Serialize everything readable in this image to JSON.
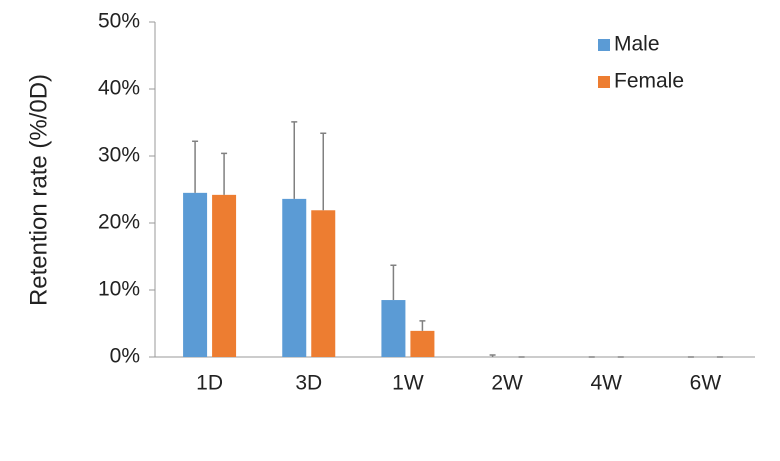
{
  "chart_data": {
    "type": "bar",
    "y_label": "Retention rate (%/0D)",
    "categories": [
      "1D",
      "3D",
      "1W",
      "2W",
      "4W",
      "6W"
    ],
    "series": [
      {
        "name": "Male",
        "color": "#5b9bd5",
        "values": [
          24.5,
          23.6,
          8.5,
          0,
          0,
          0
        ],
        "errors": [
          7.7,
          11.5,
          5.2,
          0.3,
          0,
          0
        ]
      },
      {
        "name": "Female",
        "color": "#ed7d31",
        "values": [
          24.2,
          21.9,
          3.9,
          0,
          0,
          0
        ],
        "errors": [
          6.2,
          11.5,
          1.5,
          0,
          0,
          0
        ]
      }
    ],
    "ylim": [
      0,
      50
    ],
    "yticks": [
      {
        "value": 0,
        "label": "0%"
      },
      {
        "value": 10,
        "label": "10%"
      },
      {
        "value": 20,
        "label": "20%"
      },
      {
        "value": 30,
        "label": "30%"
      },
      {
        "value": 40,
        "label": "40%"
      },
      {
        "value": 50,
        "label": "50%"
      }
    ],
    "error_color": "#808080",
    "legend": "upper-right"
  }
}
